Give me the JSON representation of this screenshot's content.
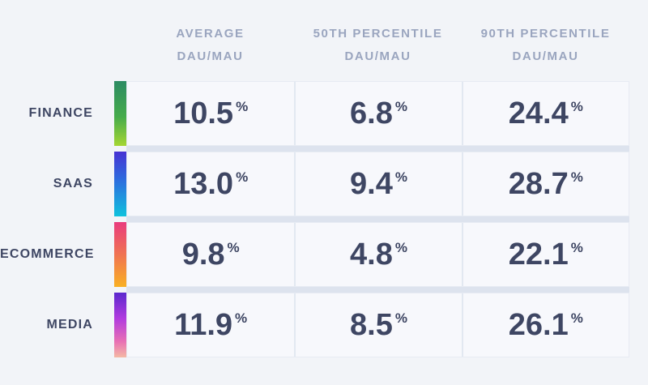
{
  "colors": {
    "page-bg": "#f2f4f8",
    "cell-bg": "#f7f8fc",
    "cell-border": "#e7ebf3",
    "cell-divider": "#e2e8f1",
    "row-gap-strip": "#dde3ee",
    "text-dark": "#3e4663",
    "text-header": "#9aa5bf",
    "finance-gradient-top": "#2c8b63",
    "finance-gradient-bottom": "#a5d633",
    "saas-gradient-top": "#4732d3",
    "saas-gradient-bottom": "#10c2dd",
    "ecommerce-gradient-top": "#e93b7e",
    "ecommerce-gradient-bottom": "#f9b023",
    "media-gradient-top": "#5b28cd",
    "media-gradient-bottom": "#f4b9a4"
  },
  "table": {
    "columns": [
      {
        "line1": "AVERAGE",
        "line2": "DAU/MAU"
      },
      {
        "line1": "50TH PERCENTILE",
        "line2": "DAU/MAU"
      },
      {
        "line1": "90TH PERCENTILE",
        "line2": "DAU/MAU"
      }
    ],
    "percent_suffix": "%",
    "rows": [
      {
        "label": "FINANCE",
        "values": [
          "10.5",
          "6.8",
          "24.4"
        ],
        "gradient": "linear-gradient(180deg, #2c8b63 0%, #45ab4b 55%, #a5d633 100%)"
      },
      {
        "label": "SAAS",
        "values": [
          "13.0",
          "9.4",
          "28.7"
        ],
        "gradient": "linear-gradient(180deg, #4732d3 0%, #2c6ede 45%, #10c2dd 100%)"
      },
      {
        "label": "ECOMMERCE",
        "values": [
          "9.8",
          "4.8",
          "22.1"
        ],
        "gradient": "linear-gradient(180deg, #e93b7e 0%, #f07352 50%, #f9b023 100%)"
      },
      {
        "label": "MEDIA",
        "values": [
          "11.9",
          "8.5",
          "26.1"
        ],
        "gradient": "linear-gradient(180deg, #5b28cd 0%, #b13bdf 40%, #e86fb4 75%, #f4b9a4 100%)"
      }
    ]
  },
  "chart_data": {
    "type": "table",
    "title": "",
    "categories": [
      "FINANCE",
      "SAAS",
      "ECOMMERCE",
      "MEDIA"
    ],
    "series": [
      {
        "name": "Average DAU/MAU",
        "values": [
          10.5,
          13.0,
          9.8,
          11.9
        ]
      },
      {
        "name": "50th Percentile DAU/MAU",
        "values": [
          6.8,
          9.4,
          4.8,
          8.5
        ]
      },
      {
        "name": "90th Percentile DAU/MAU",
        "values": [
          24.4,
          28.7,
          22.1,
          26.1
        ]
      }
    ],
    "unit": "%",
    "legend_position": "none",
    "grid": false
  }
}
